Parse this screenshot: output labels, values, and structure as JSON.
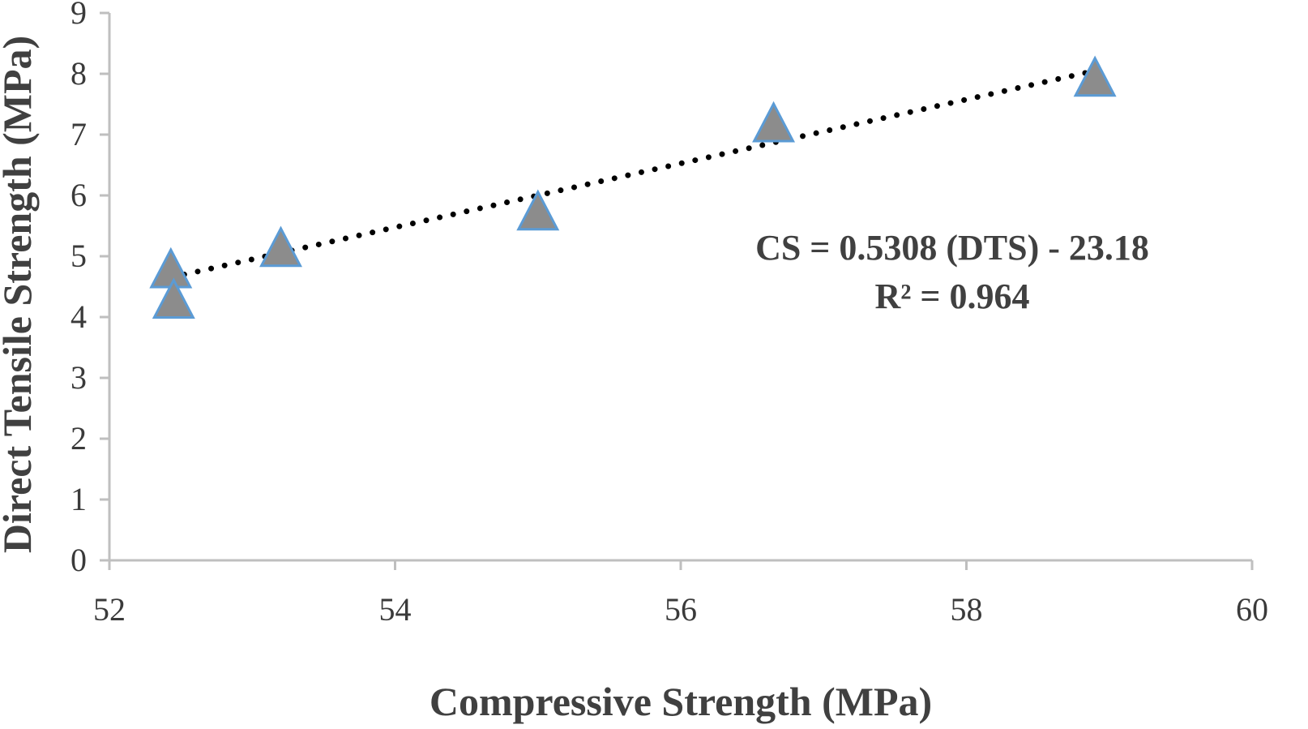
{
  "chart_data": {
    "type": "scatter",
    "xlabel": "Compressive Strength (MPa)",
    "ylabel": "Direct Tensile Strength (MPa)",
    "xlim": [
      52,
      60
    ],
    "ylim": [
      0,
      9
    ],
    "xticks": [
      52,
      54,
      56,
      58,
      60
    ],
    "yticks": [
      0,
      1,
      2,
      3,
      4,
      5,
      6,
      7,
      8,
      9
    ],
    "grid": false,
    "series": [
      {
        "marker": "triangle",
        "color": "#8c8c8c",
        "edge_color": "#5b9bd5",
        "points": [
          {
            "x": 52.43,
            "y": 4.8
          },
          {
            "x": 52.45,
            "y": 4.3
          },
          {
            "x": 53.2,
            "y": 5.15
          },
          {
            "x": 55.0,
            "y": 5.75
          },
          {
            "x": 56.65,
            "y": 7.2
          },
          {
            "x": 58.9,
            "y": 7.95
          }
        ]
      }
    ],
    "trendline": {
      "style": "dotted",
      "color": "#000000",
      "x_start": 52.43,
      "x_end": 58.9,
      "y_start": 4.65,
      "y_end": 8.05
    },
    "annotations": {
      "equation": "CS = 0.5308 (DTS) - 23.18",
      "r_squared": "R² = 0.964"
    }
  }
}
